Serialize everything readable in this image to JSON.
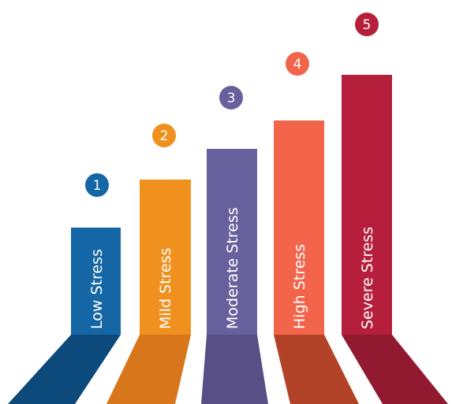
{
  "steps": [
    {
      "number": "1",
      "label": "Low Stress",
      "color": "#1566a4",
      "floor_color": "#0c4a7c"
    },
    {
      "number": "2",
      "label": "Mild Stress",
      "color": "#f0901f",
      "floor_color": "#d7761a"
    },
    {
      "number": "3",
      "label": "Moderate Stress",
      "color": "#67609c",
      "floor_color": "#574f86"
    },
    {
      "number": "4",
      "label": "High Stress",
      "color": "#f2654b",
      "floor_color": "#b34328"
    },
    {
      "number": "5",
      "label": "Severe Stress",
      "color": "#b61f3b",
      "floor_color": "#921a30"
    }
  ]
}
